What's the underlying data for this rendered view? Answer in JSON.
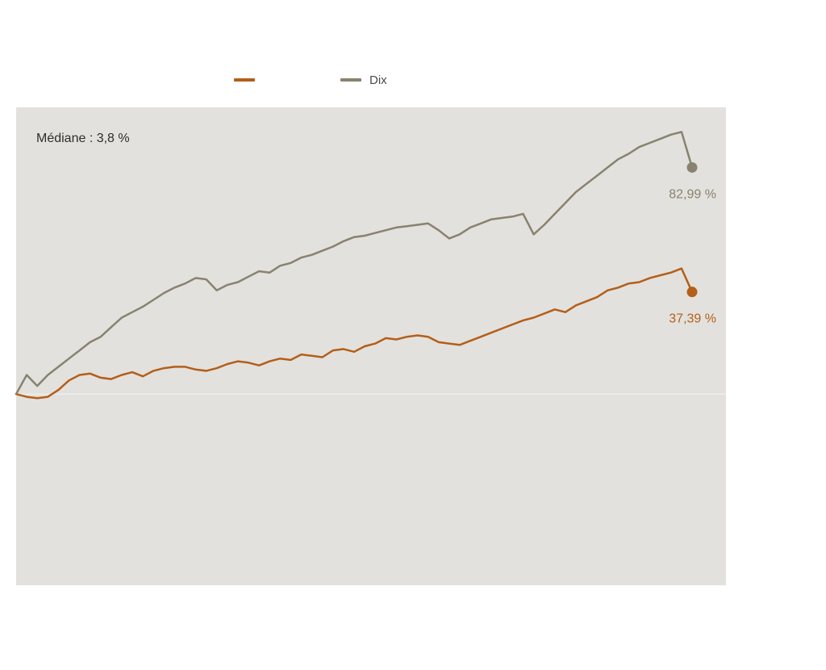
{
  "chart_data": {
    "type": "line",
    "annotation": "Médiane : 3,8 %",
    "background_color": "#e3e1dd",
    "legend_position": "top",
    "grid": false,
    "ylim": [
      -70,
      105
    ],
    "series": [
      {
        "name": "",
        "color": "#b35f1a",
        "end_label": "37,39 %",
        "values": [
          0.0,
          -1.0,
          -1.5,
          -1.0,
          1.5,
          5.0,
          7.0,
          7.5,
          6.0,
          5.5,
          7.0,
          8.0,
          6.5,
          8.5,
          9.5,
          10.0,
          10.0,
          9.0,
          8.5,
          9.5,
          11.0,
          12.0,
          11.5,
          10.5,
          12.0,
          13.0,
          12.5,
          14.5,
          14.0,
          13.5,
          16.0,
          16.5,
          15.5,
          17.5,
          18.5,
          20.5,
          20.0,
          21.0,
          21.5,
          21.0,
          19.0,
          18.5,
          18.0,
          19.5,
          21.0,
          22.5,
          24.0,
          25.5,
          27.0,
          28.0,
          29.5,
          31.0,
          30.0,
          32.5,
          34.0,
          35.5,
          38.0,
          39.0,
          40.5,
          41.0,
          42.5,
          43.5,
          44.5,
          46.0,
          37.4
        ]
      },
      {
        "name": "Dix",
        "color": "#88826f",
        "end_label": "82,99 %",
        "values": [
          0.0,
          7.0,
          3.0,
          7.0,
          10.0,
          13.0,
          16.0,
          19.0,
          21.0,
          24.5,
          28.0,
          30.0,
          32.0,
          34.5,
          37.0,
          39.0,
          40.5,
          42.5,
          42.0,
          38.0,
          40.0,
          41.0,
          43.0,
          45.0,
          44.5,
          47.0,
          48.0,
          50.0,
          51.0,
          52.5,
          54.0,
          56.0,
          57.5,
          58.0,
          59.0,
          60.0,
          61.0,
          61.5,
          62.0,
          62.5,
          60.0,
          57.0,
          58.5,
          61.0,
          62.5,
          64.0,
          64.5,
          65.0,
          66.0,
          58.5,
          62.0,
          66.0,
          70.0,
          74.0,
          77.0,
          80.0,
          83.0,
          86.0,
          88.0,
          90.5,
          92.0,
          93.5,
          95.0,
          96.0,
          82.99
        ]
      }
    ]
  }
}
